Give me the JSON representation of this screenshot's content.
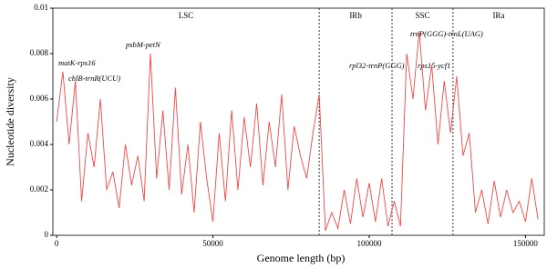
{
  "chart_data": {
    "type": "line",
    "x_label": "Genome length (bp)",
    "y_label": "Nucleotide diversity",
    "x": [
      0,
      2000,
      4000,
      6000,
      8000,
      10000,
      12000,
      14000,
      16000,
      18000,
      20000,
      22000,
      24000,
      26000,
      28000,
      30000,
      32000,
      34000,
      36000,
      38000,
      40000,
      42000,
      44000,
      46000,
      48000,
      50000,
      52000,
      54000,
      56000,
      58000,
      60000,
      62000,
      64000,
      66000,
      68000,
      70000,
      72000,
      74000,
      76000,
      78000,
      80000,
      82000,
      84000,
      86000,
      88000,
      90000,
      92000,
      94000,
      96000,
      98000,
      100000,
      102000,
      104000,
      106000,
      108000,
      110000,
      112000,
      114000,
      116000,
      118000,
      120000,
      122000,
      124000,
      126000,
      128000,
      130000,
      132000,
      134000,
      136000,
      138000,
      140000,
      142000,
      144000,
      146000,
      148000,
      150000,
      152000,
      154000
    ],
    "series": [
      {
        "color": "#f04848",
        "values": [
          0.005,
          0.0072,
          0.004,
          0.0068,
          0.0015,
          0.0045,
          0.003,
          0.006,
          0.002,
          0.0028,
          0.0012,
          0.004,
          0.0022,
          0.0035,
          0.0015,
          0.008,
          0.0025,
          0.0055,
          0.002,
          0.0065,
          0.0018,
          0.004,
          0.001,
          0.005,
          0.0025,
          0.0006,
          0.0045,
          0.0015,
          0.0055,
          0.002,
          0.0052,
          0.003,
          0.0058,
          0.0022,
          0.005,
          0.003,
          0.0062,
          0.002,
          0.0048,
          0.0035,
          0.0025,
          0.0045,
          0.0062,
          0.0002,
          0.001,
          0.0003,
          0.002,
          0.0005,
          0.0025,
          0.0008,
          0.0023,
          0.0006,
          0.0025,
          0.0004,
          0.0015,
          0.0004,
          0.008,
          0.006,
          0.009,
          0.0055,
          0.0075,
          0.004,
          0.0068,
          0.0045,
          0.007,
          0.0035,
          0.0045,
          0.001,
          0.002,
          0.0005,
          0.0024,
          0.0008,
          0.002,
          0.001,
          0.0015,
          0.0006,
          0.0025,
          0.0007
        ]
      }
    ],
    "xlim": [
      -1200,
      156000
    ],
    "ylim": [
      0,
      0.01
    ],
    "xticks": [
      0,
      50000,
      100000,
      150000
    ],
    "yticks": [
      0,
      0.002,
      0.004,
      0.006,
      0.008,
      0.01
    ],
    "boundaries": [
      84000,
      107300,
      126800
    ],
    "regions": [
      "LSC",
      "IRb",
      "SSC",
      "IRa"
    ],
    "annotations": [
      "matK-rps16",
      "chlB-trnR(UCU)",
      "psbM-petN",
      "rpl32-trnP(GGG)",
      "trnP(GGG)-trnL(UAG)",
      "rps15-ycf1"
    ]
  }
}
